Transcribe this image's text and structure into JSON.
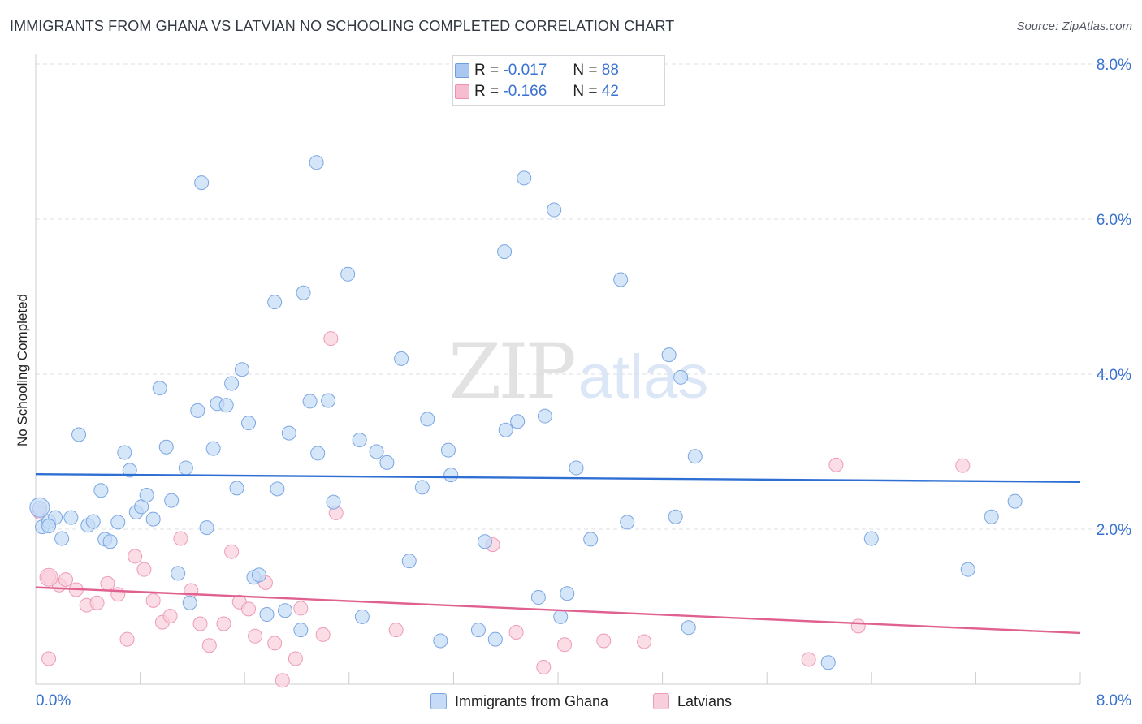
{
  "title": "IMMIGRANTS FROM GHANA VS LATVIAN NO SCHOOLING COMPLETED CORRELATION CHART",
  "source": "Source: ZipAtlas.com",
  "watermark": {
    "zip": "ZIP",
    "atlas": "atlas"
  },
  "legend": {
    "rows": [
      {
        "r_label": "R =",
        "r_value": "-0.017",
        "n_label": "N =",
        "n_value": "88",
        "color": "#a9c7f0",
        "border": "#6e9de0"
      },
      {
        "r_label": "R =",
        "r_value": "-0.166",
        "n_label": "N =",
        "n_value": "42",
        "color": "#f7bcd0",
        "border": "#ec8fb0"
      }
    ]
  },
  "bottom_legend": [
    {
      "label": "Immigrants from Ghana",
      "color": "#c5dbf6",
      "border": "#7aa6e3"
    },
    {
      "label": "Latvians",
      "color": "#f9cedc",
      "border": "#ee9bba"
    }
  ],
  "chart_data": {
    "type": "scatter",
    "title": "IMMIGRANTS FROM GHANA VS LATVIAN NO SCHOOLING COMPLETED CORRELATION CHART",
    "xlabel": "",
    "ylabel": "No Schooling Completed",
    "xlim": [
      0,
      8
    ],
    "ylim": [
      0,
      8
    ],
    "x_tick_labels": [
      "0.0%",
      "8.0%"
    ],
    "y_ticks": [
      2,
      4,
      6,
      8
    ],
    "y_tick_labels": [
      "2.0%",
      "4.0%",
      "6.0%",
      "8.0%"
    ],
    "grid": true,
    "series": [
      {
        "name": "Immigrants from Ghana",
        "color": "#7aa6e3",
        "fill": "#c5dbf6",
        "trend_color": "#2f6fd3",
        "trend": {
          "x": [
            0,
            8
          ],
          "y": [
            2.71,
            2.61
          ]
        },
        "points": [
          [
            0.03,
            2.27
          ],
          [
            0.05,
            2.03
          ],
          [
            0.1,
            2.1
          ],
          [
            0.15,
            2.15
          ],
          [
            0.2,
            1.88
          ],
          [
            0.27,
            2.15
          ],
          [
            0.33,
            3.22
          ],
          [
            0.4,
            2.05
          ],
          [
            0.44,
            2.1
          ],
          [
            0.5,
            2.5
          ],
          [
            0.53,
            1.87
          ],
          [
            0.57,
            1.84
          ],
          [
            0.63,
            2.09
          ],
          [
            0.68,
            2.99
          ],
          [
            0.72,
            2.76
          ],
          [
            0.77,
            2.22
          ],
          [
            0.81,
            2.29
          ],
          [
            0.85,
            2.44
          ],
          [
            0.9,
            2.13
          ],
          [
            0.95,
            3.82
          ],
          [
            1.0,
            3.06
          ],
          [
            1.04,
            2.37
          ],
          [
            1.09,
            1.43
          ],
          [
            1.15,
            2.79
          ],
          [
            1.18,
            1.05
          ],
          [
            1.24,
            3.53
          ],
          [
            1.31,
            2.02
          ],
          [
            1.36,
            3.04
          ],
          [
            1.39,
            3.62
          ],
          [
            1.46,
            3.6
          ],
          [
            1.5,
            3.88
          ],
          [
            1.54,
            2.53
          ],
          [
            1.58,
            4.06
          ],
          [
            1.63,
            3.37
          ],
          [
            1.67,
            1.38
          ],
          [
            1.71,
            1.41
          ],
          [
            1.77,
            0.9
          ],
          [
            1.83,
            4.93
          ],
          [
            1.85,
            2.52
          ],
          [
            1.91,
            0.95
          ],
          [
            1.94,
            3.24
          ],
          [
            2.03,
            0.7
          ],
          [
            2.05,
            5.05
          ],
          [
            2.1,
            3.65
          ],
          [
            2.16,
            2.98
          ],
          [
            2.24,
            3.66
          ],
          [
            2.28,
            2.35
          ],
          [
            2.39,
            5.29
          ],
          [
            2.48,
            3.15
          ],
          [
            2.5,
            0.87
          ],
          [
            2.61,
            3.0
          ],
          [
            2.69,
            2.86
          ],
          [
            2.8,
            4.2
          ],
          [
            2.86,
            1.59
          ],
          [
            2.96,
            2.54
          ],
          [
            3.0,
            3.42
          ],
          [
            3.1,
            0.56
          ],
          [
            3.16,
            3.02
          ],
          [
            3.18,
            2.7
          ],
          [
            3.39,
            0.7
          ],
          [
            3.44,
            1.84
          ],
          [
            3.52,
            0.58
          ],
          [
            3.6,
            3.28
          ],
          [
            3.69,
            3.39
          ],
          [
            3.85,
            1.12
          ],
          [
            3.9,
            3.46
          ],
          [
            4.02,
            0.87
          ],
          [
            4.07,
            1.17
          ],
          [
            4.14,
            2.79
          ],
          [
            4.25,
            1.87
          ],
          [
            4.48,
            5.22
          ],
          [
            4.53,
            2.09
          ],
          [
            4.85,
            4.25
          ],
          [
            4.9,
            2.16
          ],
          [
            4.94,
            3.96
          ],
          [
            5.0,
            0.73
          ],
          [
            5.05,
            2.94
          ],
          [
            6.07,
            0.28
          ],
          [
            6.4,
            1.88
          ],
          [
            7.14,
            1.48
          ],
          [
            7.32,
            2.16
          ],
          [
            7.5,
            2.36
          ],
          [
            2.15,
            6.73
          ],
          [
            1.27,
            6.47
          ],
          [
            3.74,
            6.53
          ],
          [
            3.97,
            6.12
          ],
          [
            3.59,
            5.58
          ],
          [
            0.1,
            2.04
          ]
        ]
      },
      {
        "name": "Latvians",
        "color": "#ee9bba",
        "fill": "#f9cedc",
        "trend_color": "#e0608f",
        "trend": {
          "x": [
            0,
            8
          ],
          "y": [
            1.25,
            0.66
          ]
        },
        "points": [
          [
            0.03,
            2.22
          ],
          [
            0.1,
            1.38
          ],
          [
            0.18,
            1.28
          ],
          [
            0.23,
            1.35
          ],
          [
            0.31,
            1.22
          ],
          [
            0.39,
            1.02
          ],
          [
            0.47,
            1.05
          ],
          [
            0.55,
            1.3
          ],
          [
            0.63,
            1.16
          ],
          [
            0.7,
            0.58
          ],
          [
            0.76,
            1.65
          ],
          [
            0.83,
            1.48
          ],
          [
            0.9,
            1.08
          ],
          [
            0.97,
            0.8
          ],
          [
            1.03,
            0.88
          ],
          [
            1.11,
            1.88
          ],
          [
            1.19,
            1.21
          ],
          [
            1.26,
            0.78
          ],
          [
            1.33,
            0.5
          ],
          [
            1.44,
            0.78
          ],
          [
            1.5,
            1.71
          ],
          [
            1.56,
            1.06
          ],
          [
            1.63,
            0.97
          ],
          [
            1.68,
            0.62
          ],
          [
            1.76,
            1.31
          ],
          [
            1.83,
            0.53
          ],
          [
            1.89,
            0.05
          ],
          [
            1.99,
            0.33
          ],
          [
            2.03,
            0.98
          ],
          [
            2.2,
            0.64
          ],
          [
            2.26,
            4.46
          ],
          [
            2.3,
            2.21
          ],
          [
            2.76,
            0.7
          ],
          [
            3.5,
            1.8
          ],
          [
            3.68,
            0.67
          ],
          [
            3.89,
            0.22
          ],
          [
            4.05,
            0.51
          ],
          [
            4.35,
            0.56
          ],
          [
            4.66,
            0.55
          ],
          [
            5.92,
            0.32
          ],
          [
            6.3,
            0.75
          ],
          [
            7.1,
            2.82
          ]
        ],
        "extra_points": [
          [
            0.1,
            0.33
          ],
          [
            6.13,
            2.83
          ]
        ]
      }
    ]
  }
}
